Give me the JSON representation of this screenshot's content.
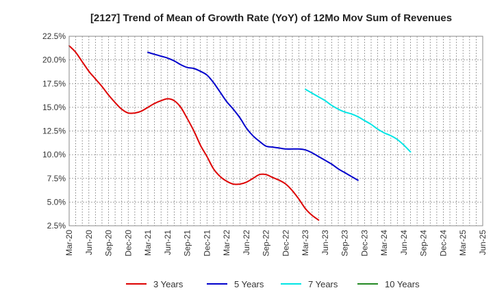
{
  "chart_data": {
    "type": "line",
    "title": "[2127]  Trend of Mean of Growth Rate (YoY) of 12Mo Mov Sum of Revenues",
    "xlabel": "",
    "ylabel": "",
    "ylim": [
      2.5,
      22.5
    ],
    "yticks": [
      2.5,
      5.0,
      7.5,
      10.0,
      12.5,
      15.0,
      17.5,
      20.0,
      22.5
    ],
    "ytick_labels": [
      "2.5%",
      "5.0%",
      "7.5%",
      "10.0%",
      "12.5%",
      "15.0%",
      "17.5%",
      "20.0%",
      "22.5%"
    ],
    "xtick_labels": [
      "Mar-20",
      "Jun-20",
      "Sep-20",
      "Dec-20",
      "Mar-21",
      "Jun-21",
      "Sep-21",
      "Dec-21",
      "Mar-22",
      "Jun-22",
      "Sep-22",
      "Dec-22",
      "Mar-23",
      "Jun-23",
      "Sep-23",
      "Dec-23",
      "Mar-24",
      "Jun-24",
      "Sep-24",
      "Dec-24",
      "Mar-25",
      "Jun-25"
    ],
    "grid": true,
    "legend_position": "bottom",
    "series": [
      {
        "name": "3 Years",
        "color": "#dd0000",
        "points": [
          [
            0,
            21.5
          ],
          [
            1,
            20.8
          ],
          [
            2,
            19.8
          ],
          [
            3,
            18.8
          ],
          [
            4,
            18.0
          ],
          [
            5,
            17.2
          ],
          [
            6,
            16.3
          ],
          [
            7,
            15.5
          ],
          [
            8,
            14.8
          ],
          [
            9,
            14.4
          ],
          [
            10,
            14.4
          ],
          [
            11,
            14.6
          ],
          [
            12,
            15.0
          ],
          [
            13,
            15.4
          ],
          [
            14,
            15.7
          ],
          [
            15,
            15.9
          ],
          [
            16,
            15.7
          ],
          [
            17,
            15.0
          ],
          [
            18,
            13.8
          ],
          [
            19,
            12.5
          ],
          [
            20,
            11.0
          ],
          [
            21,
            9.8
          ],
          [
            22,
            8.5
          ],
          [
            23,
            7.7
          ],
          [
            24,
            7.2
          ],
          [
            25,
            6.9
          ],
          [
            26,
            6.9
          ],
          [
            27,
            7.1
          ],
          [
            28,
            7.5
          ],
          [
            29,
            7.9
          ],
          [
            30,
            7.9
          ],
          [
            31,
            7.6
          ],
          [
            32,
            7.3
          ],
          [
            33,
            6.9
          ],
          [
            34,
            6.2
          ],
          [
            35,
            5.3
          ],
          [
            36,
            4.3
          ],
          [
            37,
            3.6
          ],
          [
            38,
            3.1
          ]
        ]
      },
      {
        "name": "5 Years",
        "color": "#0000cc",
        "points": [
          [
            12,
            20.8
          ],
          [
            13,
            20.6
          ],
          [
            14,
            20.4
          ],
          [
            15,
            20.2
          ],
          [
            16,
            19.9
          ],
          [
            17,
            19.5
          ],
          [
            18,
            19.2
          ],
          [
            19,
            19.1
          ],
          [
            20,
            18.8
          ],
          [
            21,
            18.4
          ],
          [
            22,
            17.6
          ],
          [
            23,
            16.6
          ],
          [
            24,
            15.6
          ],
          [
            25,
            14.8
          ],
          [
            26,
            13.9
          ],
          [
            27,
            12.8
          ],
          [
            28,
            12.0
          ],
          [
            29,
            11.4
          ],
          [
            30,
            10.9
          ],
          [
            31,
            10.8
          ],
          [
            32,
            10.7
          ],
          [
            33,
            10.6
          ],
          [
            34,
            10.6
          ],
          [
            35,
            10.6
          ],
          [
            36,
            10.5
          ],
          [
            37,
            10.2
          ],
          [
            38,
            9.8
          ],
          [
            39,
            9.4
          ],
          [
            40,
            9.0
          ],
          [
            41,
            8.5
          ],
          [
            42,
            8.1
          ],
          [
            43,
            7.7
          ],
          [
            44,
            7.3
          ]
        ]
      },
      {
        "name": "7 Years",
        "color": "#00e5e5",
        "points": [
          [
            36,
            16.9
          ],
          [
            37,
            16.5
          ],
          [
            38,
            16.1
          ],
          [
            39,
            15.7
          ],
          [
            40,
            15.2
          ],
          [
            41,
            14.8
          ],
          [
            42,
            14.5
          ],
          [
            43,
            14.3
          ],
          [
            44,
            14.0
          ],
          [
            45,
            13.6
          ],
          [
            46,
            13.2
          ],
          [
            47,
            12.7
          ],
          [
            48,
            12.3
          ],
          [
            49,
            12.0
          ],
          [
            50,
            11.6
          ],
          [
            51,
            11.0
          ],
          [
            52,
            10.3
          ]
        ]
      },
      {
        "name": "10 Years",
        "color": "#228822",
        "points": []
      }
    ]
  }
}
